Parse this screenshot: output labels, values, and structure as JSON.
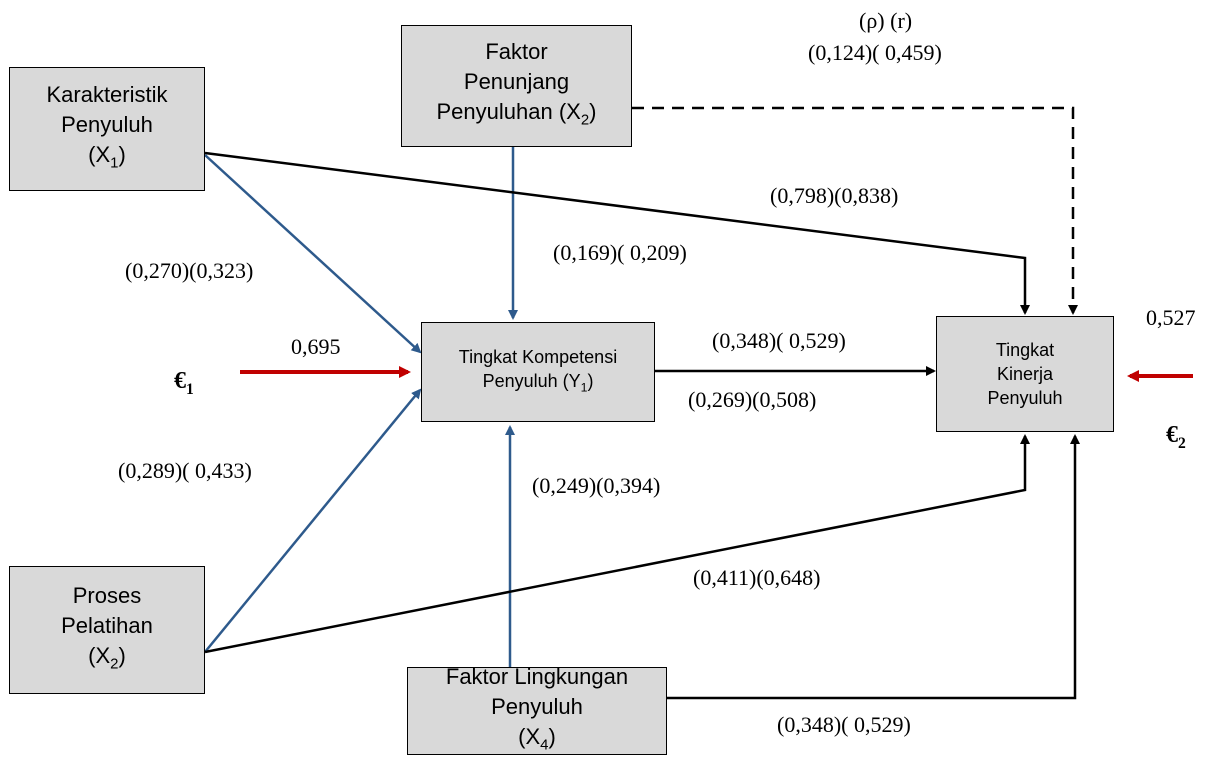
{
  "boxes": {
    "x1": {
      "line1": "Karakteristik",
      "line2": "Penyuluh",
      "line3_base": "(X",
      "line3_sub": "1",
      "line3_end": ")"
    },
    "x2": {
      "line1": "Faktor",
      "line2": "Penunjang",
      "line3_base": "Penyuluhan (X",
      "line3_sub": "2",
      "line3_end": ")"
    },
    "x3": {
      "line1": "Proses",
      "line2": "Pelatihan",
      "line3_base": "(X",
      "line3_sub": "2",
      "line3_end": ")"
    },
    "x4": {
      "line1": "Faktor Lingkungan",
      "line2": "Penyuluh",
      "line3_base": "(X",
      "line3_sub": "4",
      "line3_end": ")"
    },
    "y1": {
      "line1": "Tingkat Kompetensi",
      "line2_base": "Penyuluh (Y",
      "line2_sub": "1",
      "line2_end": ")"
    },
    "y2": {
      "line1": "Tingkat",
      "line2": "Kinerja",
      "line3": "Penyuluh"
    }
  },
  "coefficients": {
    "header_symbols": "(ρ) (r)",
    "x2_y2": "(0,124)( 0,459)",
    "x1_y2": "(0,798)(0,838)",
    "x2_y1": "(0,169)( 0,209)",
    "x1_y1": "(0,270)(0,323)",
    "y1_y2_top": "(0,348)( 0,529)",
    "y1_y2_bottom": "(0,269)(0,508)",
    "x3_y1": "(0,289)( 0,433)",
    "x4_y1": "(0,249)(0,394)",
    "x3_y2": "(0,411)(0,648)",
    "x4_y2": "(0,348)( 0,529)",
    "e1_value": "0,695",
    "e2_value": "0,527"
  },
  "errors": {
    "e1_symbol": "€",
    "e1_sub": "1",
    "e2_symbol": "€",
    "e2_sub": "2"
  },
  "colors": {
    "blue_arrow": "#2e5a8c",
    "black_arrow": "#000000",
    "red_arrow": "#c00000",
    "box_fill": "#d9d9d9"
  }
}
